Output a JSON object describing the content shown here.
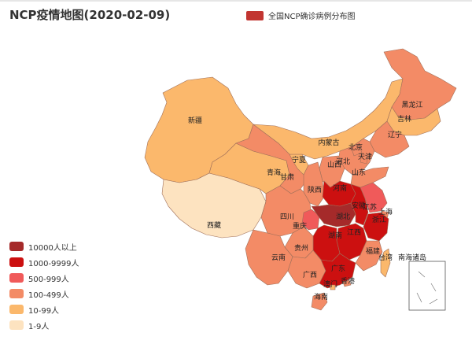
{
  "title": "NCP疫情地图(2020-02-09)",
  "series_legend": {
    "label": "全国NCP确诊病例分布图",
    "color": "#c23531"
  },
  "visual_map": [
    {
      "label": "10000人以上",
      "color": "#a52a2a"
    },
    {
      "label": "1000-9999人",
      "color": "#cc1010"
    },
    {
      "label": "500-999人",
      "color": "#f05a5a"
    },
    {
      "label": "100-499人",
      "color": "#f38b66"
    },
    {
      "label": "10-99人",
      "color": "#fbb86c"
    },
    {
      "label": "1-9人",
      "color": "#fde3c0"
    }
  ],
  "provinces": [
    {
      "name": "新疆",
      "level": 4
    },
    {
      "name": "西藏",
      "level": 5
    },
    {
      "name": "青海",
      "level": 4
    },
    {
      "name": "甘肃",
      "level": 3
    },
    {
      "name": "宁夏",
      "level": 4
    },
    {
      "name": "内蒙古",
      "level": 4
    },
    {
      "name": "黑龙江",
      "level": 3
    },
    {
      "name": "吉林",
      "level": 4
    },
    {
      "name": "辽宁",
      "level": 3
    },
    {
      "name": "北京",
      "level": 3
    },
    {
      "name": "天津",
      "level": 3
    },
    {
      "name": "河北",
      "level": 3
    },
    {
      "name": "山西",
      "level": 3
    },
    {
      "name": "山东",
      "level": 3
    },
    {
      "name": "陕西",
      "level": 3
    },
    {
      "name": "河南",
      "level": 1
    },
    {
      "name": "四川",
      "level": 3
    },
    {
      "name": "重庆",
      "level": 2
    },
    {
      "name": "湖北",
      "level": 0
    },
    {
      "name": "安徽",
      "level": 1
    },
    {
      "name": "江苏",
      "level": 2
    },
    {
      "name": "上海",
      "level": 3
    },
    {
      "name": "浙江",
      "level": 1
    },
    {
      "name": "江西",
      "level": 1
    },
    {
      "name": "湖南",
      "level": 1
    },
    {
      "name": "贵州",
      "level": 3
    },
    {
      "name": "云南",
      "level": 3
    },
    {
      "name": "广西",
      "level": 3
    },
    {
      "name": "广东",
      "level": 1
    },
    {
      "name": "福建",
      "level": 3
    },
    {
      "name": "台湾",
      "level": 4
    },
    {
      "name": "南海诸岛",
      "level": null
    },
    {
      "name": "香港",
      "level": 3
    },
    {
      "name": "澳门",
      "level": 4
    },
    {
      "name": "海南",
      "level": 3
    }
  ]
}
